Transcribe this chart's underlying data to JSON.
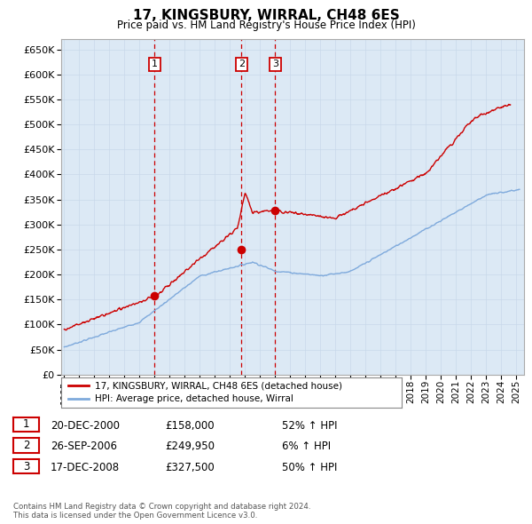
{
  "title": "17, KINGSBURY, WIRRAL, CH48 6ES",
  "subtitle": "Price paid vs. HM Land Registry's House Price Index (HPI)",
  "ylim": [
    0,
    670000
  ],
  "yticks": [
    0,
    50000,
    100000,
    150000,
    200000,
    250000,
    300000,
    350000,
    400000,
    450000,
    500000,
    550000,
    600000,
    650000
  ],
  "xlim_start": 1994.8,
  "xlim_end": 2025.5,
  "grid_color": "#c8d8ea",
  "bg_color": "#dce9f5",
  "hpi_color": "#7faadc",
  "price_color": "#cc0000",
  "dashed_line_color": "#cc0000",
  "legend_label_price": "17, KINGSBURY, WIRRAL, CH48 6ES (detached house)",
  "legend_label_hpi": "HPI: Average price, detached house, Wirral",
  "transactions": [
    {
      "num": 1,
      "date": 2001.0,
      "price": 158000,
      "label": "20-DEC-2000",
      "price_label": "£158,000",
      "hpi_label": "52% ↑ HPI"
    },
    {
      "num": 2,
      "date": 2006.75,
      "price": 249950,
      "label": "26-SEP-2006",
      "price_label": "£249,950",
      "hpi_label": "6% ↑ HPI"
    },
    {
      "num": 3,
      "date": 2009.0,
      "price": 327500,
      "label": "17-DEC-2008",
      "price_label": "£327,500",
      "hpi_label": "50% ↑ HPI"
    }
  ],
  "footnote": "Contains HM Land Registry data © Crown copyright and database right 2024.\nThis data is licensed under the Open Government Licence v3.0.",
  "transaction_box_color": "#cc0000"
}
